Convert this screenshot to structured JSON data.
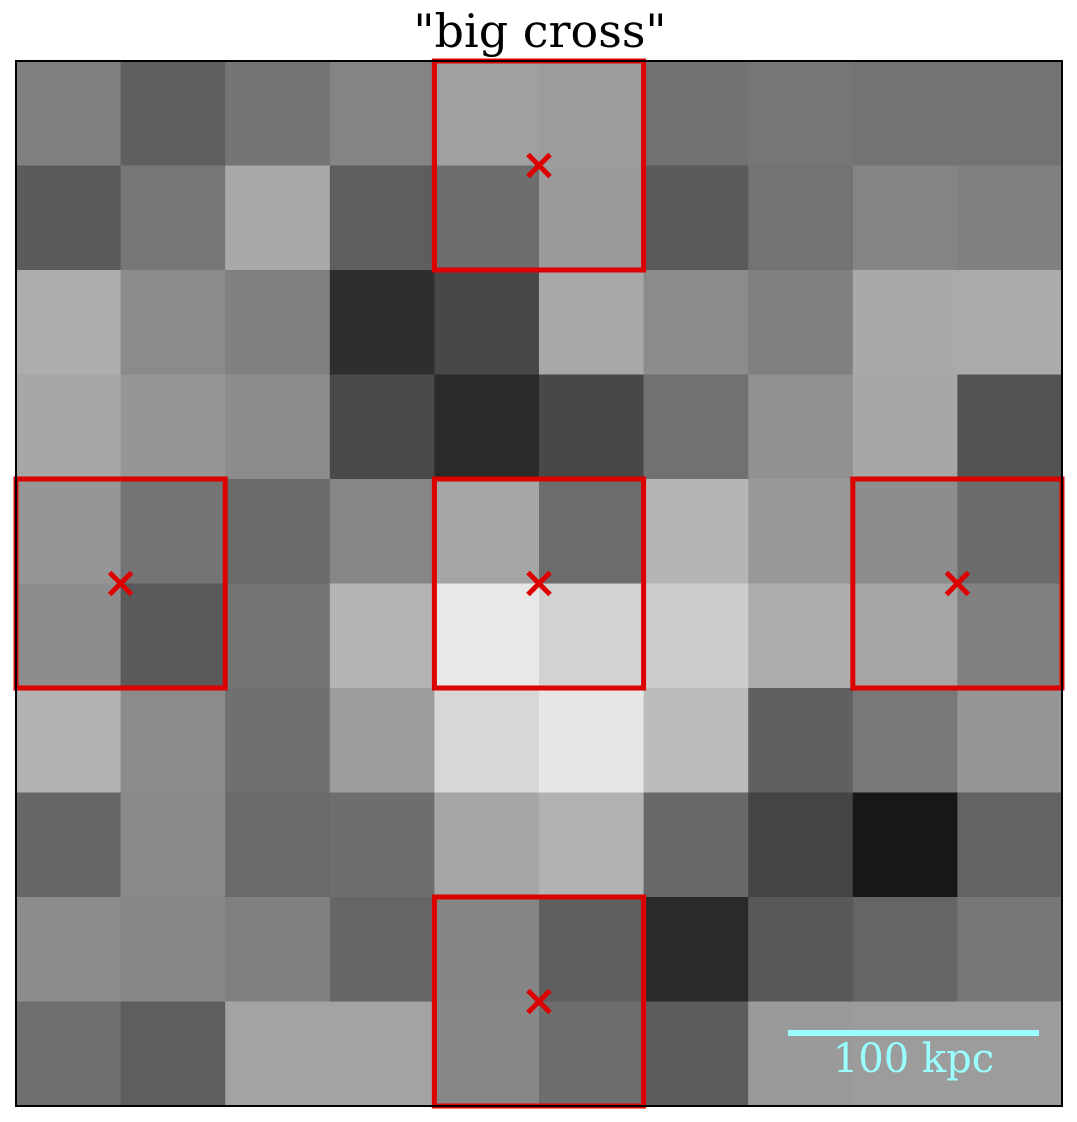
{
  "chart_data": {
    "type": "image",
    "title": "\"big cross\"",
    "values": [
      [
        128,
        95,
        116,
        132,
        160,
        156,
        113,
        118,
        115,
        115
      ],
      [
        91,
        119,
        169,
        94,
        110,
        155,
        90,
        115,
        132,
        128
      ],
      [
        173,
        139,
        128,
        46,
        71,
        168,
        139,
        128,
        169,
        171
      ],
      [
        167,
        150,
        140,
        74,
        42,
        72,
        113,
        145,
        167,
        83
      ],
      [
        150,
        116,
        107,
        134,
        165,
        108,
        181,
        152,
        141,
        107
      ],
      [
        141,
        90,
        116,
        180,
        232,
        210,
        205,
        174,
        165,
        128
      ],
      [
        178,
        139,
        112,
        156,
        215,
        230,
        188,
        96,
        120,
        150
      ],
      [
        103,
        137,
        106,
        110,
        166,
        178,
        105,
        68,
        23,
        99
      ],
      [
        140,
        135,
        128,
        102,
        133,
        95,
        42,
        88,
        101,
        118
      ],
      [
        111,
        94,
        163,
        163,
        135,
        109,
        93,
        154,
        156,
        156
      ]
    ],
    "markers": [
      {
        "x": 5,
        "y": 1
      },
      {
        "x": 1,
        "y": 5
      },
      {
        "x": 5,
        "y": 5
      },
      {
        "x": 9,
        "y": 5
      },
      {
        "x": 5,
        "y": 9
      }
    ],
    "box_size": 2,
    "marker_color": "#dd0000",
    "scale_bar": {
      "label": "100 kpc",
      "length": 2.4,
      "color": "#99ffff"
    }
  }
}
